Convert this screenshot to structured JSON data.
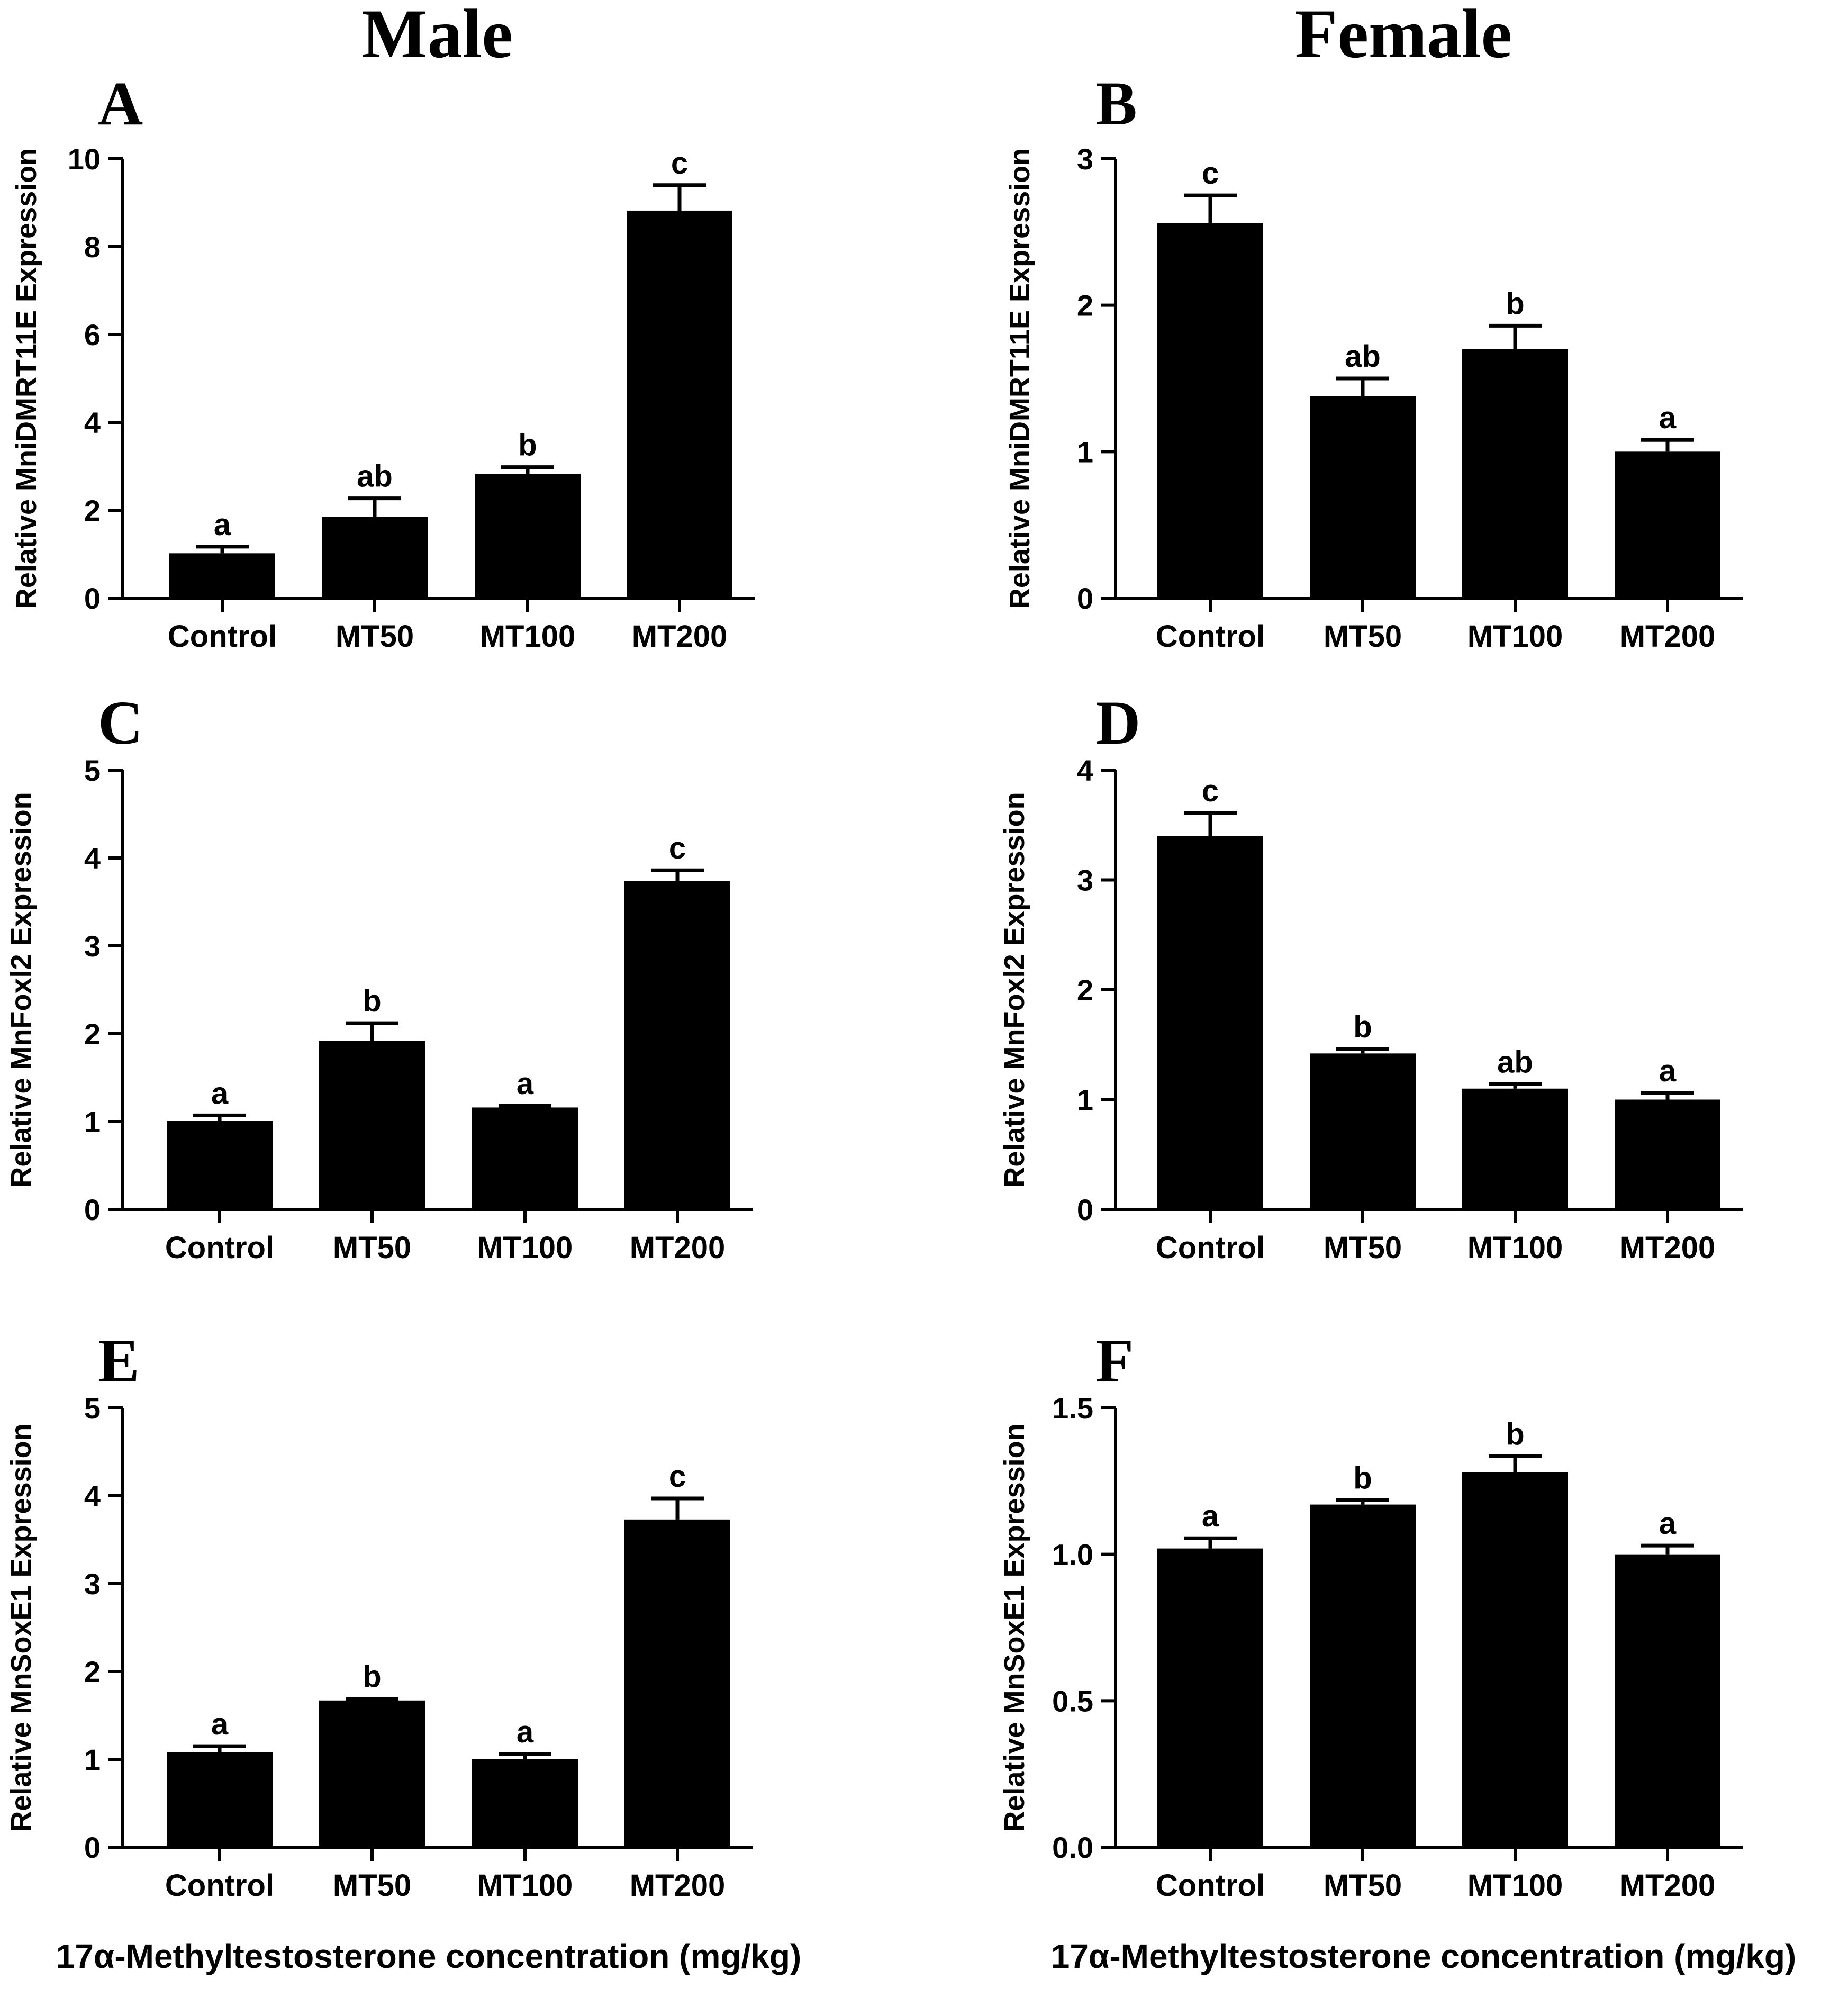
{
  "figure": {
    "column_titles": [
      "Male",
      "Female"
    ],
    "xlabel": "17α-Methyltestosterone concentration (mg/kg)"
  },
  "chart_data": [
    {
      "panel": "A",
      "type": "bar",
      "sex": "Male",
      "categories": [
        "Control",
        "MT50",
        "MT100",
        "MT200"
      ],
      "values": [
        1.02,
        1.85,
        2.83,
        8.82
      ],
      "errors": [
        0.15,
        0.42,
        0.15,
        0.58
      ],
      "significance": [
        "a",
        "ab",
        "b",
        "c"
      ],
      "ylabel": "Relative MniDMRT11E Expression",
      "ylim": [
        0,
        10
      ],
      "yticks": [
        0,
        2,
        4,
        6,
        8,
        10
      ],
      "ytick_labels": [
        "0",
        "2",
        "4",
        "6",
        "8",
        "10"
      ]
    },
    {
      "panel": "B",
      "type": "bar",
      "sex": "Female",
      "categories": [
        "Control",
        "MT50",
        "MT100",
        "MT200"
      ],
      "values": [
        2.56,
        1.38,
        1.7,
        1.0
      ],
      "errors": [
        0.19,
        0.12,
        0.16,
        0.08
      ],
      "significance": [
        "c",
        "ab",
        "b",
        "a"
      ],
      "ylabel": "Relative MniDMRT11E Expression",
      "ylim": [
        0,
        3
      ],
      "yticks": [
        0,
        1,
        2,
        3
      ],
      "ytick_labels": [
        "0",
        "1",
        "2",
        "3"
      ]
    },
    {
      "panel": "C",
      "type": "bar",
      "sex": "Male",
      "categories": [
        "Control",
        "MT50",
        "MT100",
        "MT200"
      ],
      "values": [
        1.01,
        1.92,
        1.16,
        3.74
      ],
      "errors": [
        0.06,
        0.2,
        0.02,
        0.12
      ],
      "significance": [
        "a",
        "b",
        "a",
        "c"
      ],
      "ylabel": "Relative MnFoxl2 Expression",
      "ylim": [
        0,
        5
      ],
      "yticks": [
        0,
        1,
        2,
        3,
        4,
        5
      ],
      "ytick_labels": [
        "0",
        "1",
        "2",
        "3",
        "4",
        "5"
      ]
    },
    {
      "panel": "D",
      "type": "bar",
      "sex": "Female",
      "categories": [
        "Control",
        "MT50",
        "MT100",
        "MT200"
      ],
      "values": [
        3.4,
        1.42,
        1.1,
        1.0
      ],
      "errors": [
        0.21,
        0.04,
        0.04,
        0.06
      ],
      "significance": [
        "c",
        "b",
        "ab",
        "a"
      ],
      "ylabel": "Relative MnFoxl2 Expression",
      "ylim": [
        0,
        4
      ],
      "yticks": [
        0,
        1,
        2,
        3,
        4
      ],
      "ytick_labels": [
        "0",
        "1",
        "2",
        "3",
        "4"
      ]
    },
    {
      "panel": "E",
      "type": "bar",
      "sex": "Male",
      "categories": [
        "Control",
        "MT50",
        "MT100",
        "MT200"
      ],
      "values": [
        1.08,
        1.67,
        1.0,
        3.73
      ],
      "errors": [
        0.07,
        0.02,
        0.06,
        0.24
      ],
      "significance": [
        "a",
        "b",
        "a",
        "c"
      ],
      "ylabel": "Relative MnSoxE1 Expression",
      "ylim": [
        0,
        5
      ],
      "yticks": [
        0,
        1,
        2,
        3,
        4,
        5
      ],
      "ytick_labels": [
        "0",
        "1",
        "2",
        "3",
        "4",
        "5"
      ]
    },
    {
      "panel": "F",
      "type": "bar",
      "sex": "Female",
      "categories": [
        "Control",
        "MT50",
        "MT100",
        "MT200"
      ],
      "values": [
        1.02,
        1.17,
        1.28,
        1.0
      ],
      "errors": [
        0.035,
        0.015,
        0.055,
        0.03
      ],
      "significance": [
        "a",
        "b",
        "b",
        "a"
      ],
      "ylabel": "Relative MnSoxE1 Expression",
      "ylim": [
        0,
        1.5
      ],
      "yticks": [
        0,
        0.5,
        1.0,
        1.5
      ],
      "ytick_labels": [
        "0.0",
        "0.5",
        "1.0",
        "1.5"
      ]
    }
  ]
}
